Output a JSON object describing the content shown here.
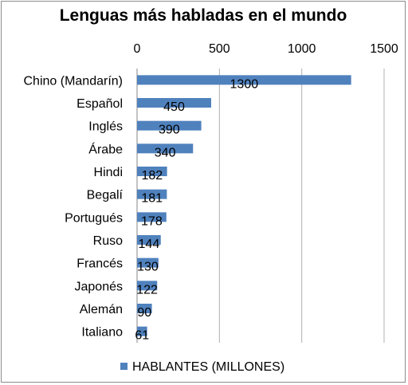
{
  "chart_data": {
    "type": "bar",
    "orientation": "horizontal",
    "title": "Lenguas más habladas en el mundo",
    "categories": [
      "Chino (Mandarín)",
      "Español",
      "Inglés",
      "Árabe",
      "Hindi",
      "Begalí",
      "Portugués",
      "Ruso",
      "Francés",
      "Japonés",
      "Alemán",
      "Italiano"
    ],
    "series": [
      {
        "name": "HABLANTES (MILLONES)",
        "values": [
          1300,
          450,
          390,
          340,
          182,
          181,
          178,
          144,
          130,
          122,
          90,
          61
        ],
        "color": "#4f81bd"
      }
    ],
    "xlim": [
      0,
      1500
    ],
    "xticks": [
      0,
      500,
      1000,
      1500
    ],
    "xaxis_position": "top",
    "grid": true,
    "data_labels": true,
    "legend": "bottom"
  }
}
